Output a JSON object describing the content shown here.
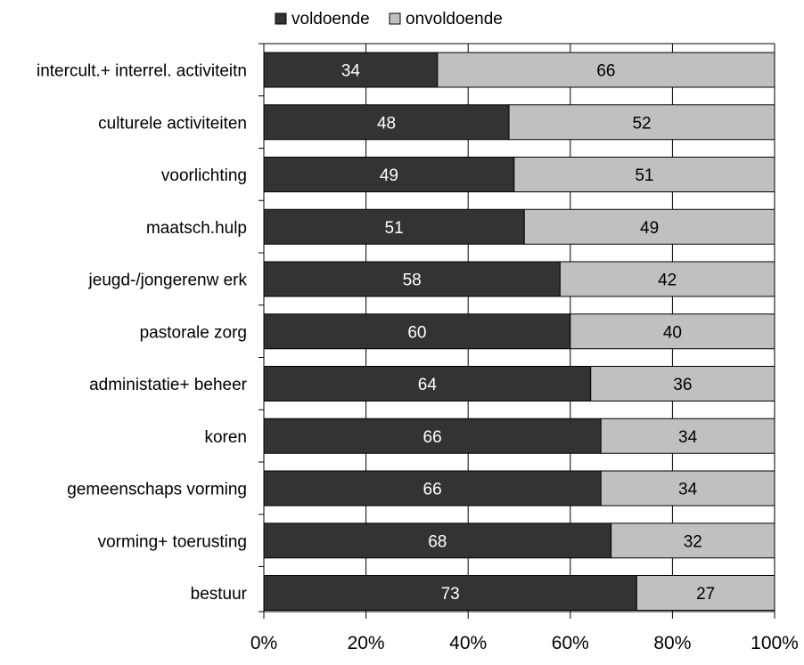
{
  "chart_data": {
    "type": "bar",
    "orientation": "horizontal",
    "stacked": true,
    "percent": true,
    "categories": [
      "intercult.+  interrel. activiteitn",
      "culturele activiteiten",
      "voorlichting",
      "maatsch.hulp",
      "jeugd-/jongerenw erk",
      "pastorale zorg",
      "administatie+  beheer",
      "koren",
      "gemeenschaps vorming",
      "vorming+  toerusting",
      "bestuur"
    ],
    "series": [
      {
        "name": "voldoende",
        "color": "#333333",
        "label_color": "#ffffff",
        "values": [
          34,
          48,
          49,
          51,
          58,
          60,
          64,
          66,
          66,
          68,
          73
        ]
      },
      {
        "name": "onvoldoende",
        "color": "#c0c0c0",
        "label_color": "#000000",
        "values": [
          66,
          52,
          51,
          49,
          42,
          40,
          36,
          34,
          34,
          32,
          27
        ]
      }
    ],
    "xlim": [
      0,
      100
    ],
    "xticks": [
      "0%",
      "20%",
      "40%",
      "60%",
      "80%",
      "100%"
    ],
    "grid": "vertical",
    "legend_position": "top"
  }
}
